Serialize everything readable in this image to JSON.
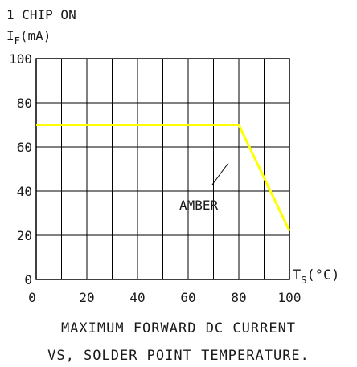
{
  "header": {
    "line1": "1 CHIP ON",
    "ylabel_main": "I",
    "ylabel_sub": "F",
    "ylabel_unit": "(mA)"
  },
  "xaxis": {
    "label_main": "T",
    "label_sub": "S",
    "label_unit": "(°C)"
  },
  "caption": {
    "line1": "MAXIMUM FORWARD DC CURRENT",
    "line2": "VS, SOLDER POINT TEMPERATURE."
  },
  "chart_data": {
    "type": "line",
    "xlim": [
      0,
      100
    ],
    "ylim": [
      0,
      100
    ],
    "xticks": [
      0,
      20,
      40,
      60,
      80,
      100
    ],
    "yticks": [
      0,
      20,
      40,
      60,
      80,
      100
    ],
    "grid": true,
    "series": [
      {
        "name": "AMBER",
        "color": "#ffff00",
        "x": [
          0,
          80,
          100
        ],
        "y": [
          70,
          70,
          22
        ]
      }
    ]
  }
}
